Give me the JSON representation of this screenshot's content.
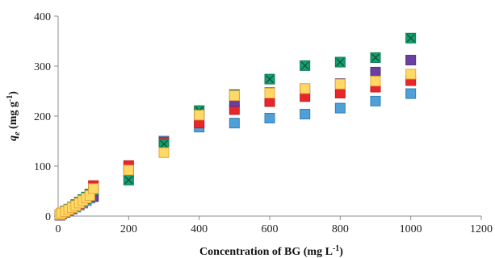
{
  "chart_data": {
    "type": "scatter",
    "title": "",
    "xlabel": {
      "text": "Concentration of BG (mg L",
      "sup": "-1",
      "close": ")"
    },
    "ylabel": {
      "prefix": "q",
      "sub": "e",
      "middle": " (mg g",
      "sup": "-1",
      "close": ")"
    },
    "xlim": [
      0,
      1200
    ],
    "ylim": [
      0,
      400
    ],
    "x_ticks": [
      "0",
      "200",
      "400",
      "600",
      "800",
      "1000",
      "1200"
    ],
    "y_ticks": [
      "0",
      "100",
      "200",
      "300",
      "400"
    ],
    "grid": false,
    "legend": "none",
    "series": [
      {
        "marker": "square",
        "color": "#4f9fd8",
        "edge": "#2f7fb8",
        "points": [
          [
            5,
            2
          ],
          [
            10,
            4
          ],
          [
            20,
            7
          ],
          [
            30,
            10
          ],
          [
            40,
            14
          ],
          [
            50,
            18
          ],
          [
            60,
            22
          ],
          [
            70,
            26
          ],
          [
            80,
            31
          ],
          [
            90,
            36
          ],
          [
            100,
            42
          ],
          [
            200,
            95
          ],
          [
            300,
            150
          ],
          [
            400,
            178
          ],
          [
            500,
            186
          ],
          [
            600,
            196
          ],
          [
            700,
            204
          ],
          [
            800,
            216
          ],
          [
            900,
            230
          ],
          [
            1000,
            245
          ]
        ]
      },
      {
        "marker": "square",
        "color": "#e8272d",
        "edge": "#c21d21",
        "points": [
          [
            5,
            2
          ],
          [
            10,
            5
          ],
          [
            20,
            8
          ],
          [
            30,
            12
          ],
          [
            40,
            16
          ],
          [
            50,
            21
          ],
          [
            60,
            25
          ],
          [
            70,
            30
          ],
          [
            80,
            35
          ],
          [
            90,
            41
          ],
          [
            100,
            61
          ],
          [
            200,
            101
          ],
          [
            300,
            148
          ],
          [
            400,
            186
          ],
          [
            500,
            213
          ],
          [
            600,
            229
          ],
          [
            700,
            239
          ],
          [
            800,
            246
          ],
          [
            900,
            258
          ],
          [
            1000,
            271
          ]
        ]
      },
      {
        "marker": "square",
        "color": "#6b3fa0",
        "edge": "#52307c",
        "points": [
          [
            5,
            2
          ],
          [
            10,
            5
          ],
          [
            20,
            9
          ],
          [
            30,
            13
          ],
          [
            40,
            17
          ],
          [
            50,
            22
          ],
          [
            60,
            27
          ],
          [
            70,
            32
          ],
          [
            80,
            38
          ],
          [
            90,
            43
          ],
          [
            100,
            39
          ],
          [
            200,
            88
          ],
          [
            300,
            143
          ],
          [
            400,
            205
          ],
          [
            500,
            229
          ],
          [
            600,
            247
          ],
          [
            700,
            255
          ],
          [
            800,
            265
          ],
          [
            900,
            288
          ],
          [
            1000,
            312
          ]
        ]
      },
      {
        "marker": "square-x",
        "color": "#14a06f",
        "edge": "#0b7a52",
        "points": [
          [
            5,
            3
          ],
          [
            10,
            6
          ],
          [
            20,
            10
          ],
          [
            30,
            14
          ],
          [
            40,
            18
          ],
          [
            50,
            23
          ],
          [
            60,
            28
          ],
          [
            70,
            33
          ],
          [
            80,
            38
          ],
          [
            90,
            44
          ],
          [
            100,
            52
          ],
          [
            200,
            72
          ],
          [
            300,
            144
          ],
          [
            400,
            211
          ],
          [
            500,
            243
          ],
          [
            600,
            274
          ],
          [
            700,
            301
          ],
          [
            800,
            308
          ],
          [
            900,
            317
          ],
          [
            1000,
            356
          ]
        ]
      },
      {
        "marker": "square",
        "color": "#ffd966",
        "edge": "#e8a838",
        "points": [
          [
            5,
            3
          ],
          [
            10,
            6
          ],
          [
            20,
            9
          ],
          [
            30,
            13
          ],
          [
            40,
            17
          ],
          [
            50,
            21
          ],
          [
            60,
            26
          ],
          [
            70,
            31
          ],
          [
            80,
            36
          ],
          [
            90,
            41
          ],
          [
            100,
            55
          ],
          [
            200,
            92
          ],
          [
            300,
            127
          ],
          [
            400,
            202
          ],
          [
            500,
            241
          ],
          [
            600,
            246
          ],
          [
            700,
            255
          ],
          [
            800,
            264
          ],
          [
            900,
            270
          ],
          [
            1000,
            284
          ]
        ]
      }
    ]
  }
}
